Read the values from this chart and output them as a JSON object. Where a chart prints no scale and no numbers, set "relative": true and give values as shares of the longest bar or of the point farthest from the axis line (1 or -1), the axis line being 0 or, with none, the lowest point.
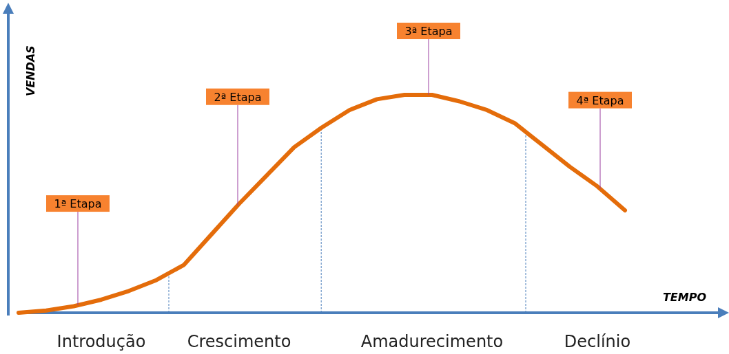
{
  "chart_data": {
    "type": "line",
    "relative": true,
    "xlabel": "TEMPO",
    "ylabel": "VENDAS",
    "categories": [
      null,
      null,
      null,
      "Introdução",
      null,
      null,
      null,
      null,
      "Crescimento",
      null,
      null,
      null,
      null,
      null,
      null,
      "Amadurecimento",
      null,
      null,
      null,
      null,
      null,
      "Declínio",
      null
    ],
    "series": [
      {
        "color": "#e46c0a",
        "values": [
          0,
          0.01,
          0.03,
          0.06,
          0.1,
          0.15,
          0.22,
          0.36,
          0.5,
          0.63,
          0.76,
          0.85,
          0.93,
          0.98,
          1,
          1,
          0.97,
          0.93,
          0.87,
          0.77,
          0.67,
          0.58,
          0.47
        ]
      }
    ],
    "annotations": [
      "1ª Etapa",
      "2ª Etapa",
      "3ª Etapa",
      "4ª Etapa"
    ]
  }
}
